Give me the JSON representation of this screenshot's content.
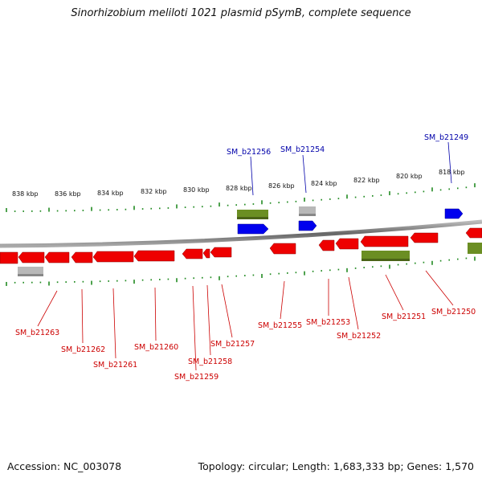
{
  "title": "Sinorhizobium meliloti 1021 plasmid pSymB, complete sequence",
  "footer": {
    "accession": "Accession: NC_003078",
    "summary": "Topology: circular; Length: 1,683,333 bp; Genes: 1,570"
  },
  "colors": {
    "forward_gene": "#0000ee",
    "reverse_gene": "#ee0000",
    "label_forward": "#0000aa",
    "label_reverse": "#cc0000",
    "cds_bar": "#6b8e23",
    "other_feature": "#b0b0b0",
    "ruler": "#228b22",
    "backbone": "#777777"
  },
  "ruler_labels": [
    "838 kbp",
    "836 kbp",
    "834 kbp",
    "832 kbp",
    "830 kbp",
    "828 kbp",
    "826 kbp",
    "824 kbp",
    "822 kbp",
    "820 kbp",
    "818 kbp"
  ],
  "forward_labels": [
    "SM_b21256",
    "SM_b21254",
    "SM_b21249"
  ],
  "reverse_labels": [
    "SM_b21263",
    "SM_b21262",
    "SM_b21261",
    "SM_b21260",
    "SM_b21259",
    "SM_b21258",
    "SM_b21257",
    "SM_b21255",
    "SM_b21253",
    "SM_b21252",
    "SM_b21251",
    "SM_b21250"
  ]
}
